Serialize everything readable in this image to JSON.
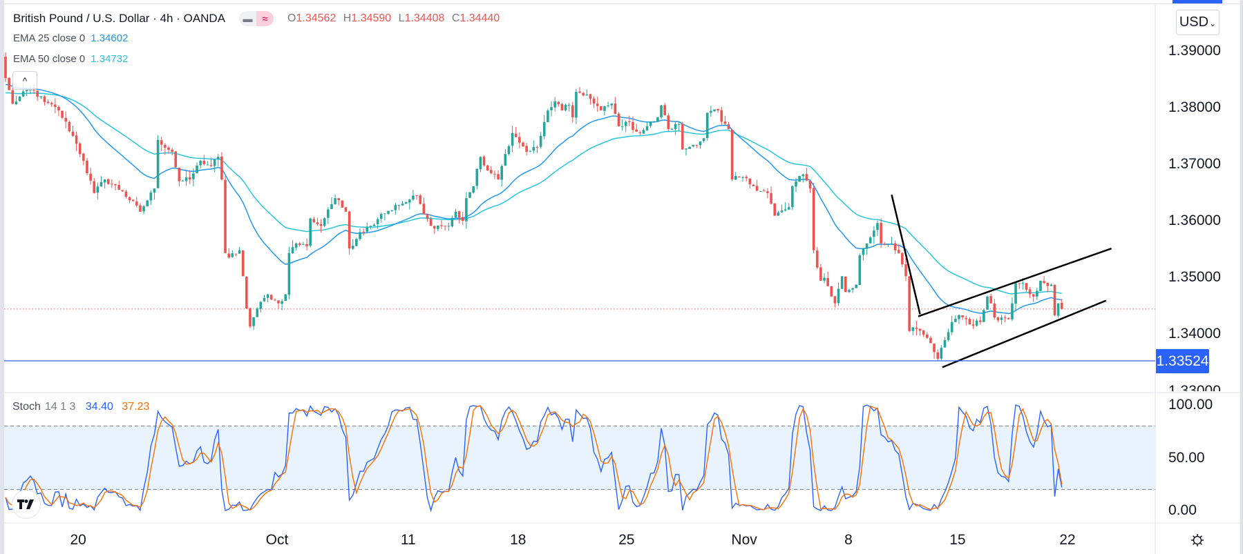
{
  "legend": {
    "title": "British Pound / U.S. Dollar · 4h · OANDA",
    "pill_left_icon": "minus-icon",
    "pill_right_icon": "approx-icon",
    "pill_right_glyph": "≈",
    "ohlc": {
      "o_key": "O",
      "o": "1.34562",
      "h_key": "H",
      "h": "1.34590",
      "l_key": "L",
      "l": "1.34408",
      "c_key": "C",
      "c": "1.34440"
    },
    "ema25": {
      "label": "EMA 25 close 0",
      "value": "1.34602"
    },
    "ema50": {
      "label": "EMA 50 close 0",
      "value": "1.34732"
    },
    "collapse_glyph": "^"
  },
  "currency_button": {
    "label": "USD",
    "chevron": "⌄"
  },
  "stoch_legend": {
    "name": "Stoch",
    "params": "14 1 3",
    "k": "34.40",
    "d": "37.23"
  },
  "colors": {
    "up": "#26a69a",
    "down": "#ef5350",
    "ema25": "#2196f3",
    "ema50": "#26c6da",
    "stoch_k": "#2962ff",
    "stoch_d": "#ff6d00",
    "hline": "#2962ff",
    "last_price": "#ef5350",
    "band": "#e8f3fd"
  },
  "chart_data": {
    "type": "candlestick",
    "title": "British Pound / U.S. Dollar · 4h · OANDA",
    "price_ticks": [
      {
        "label": "1.39000",
        "value": 1.39
      },
      {
        "label": "1.38000",
        "value": 1.38
      },
      {
        "label": "1.37000",
        "value": 1.37
      },
      {
        "label": "1.36000",
        "value": 1.36
      },
      {
        "label": "1.35000",
        "value": 1.35
      },
      {
        "label": "1.34000",
        "value": 1.34
      },
      {
        "label": "1.33000",
        "value": 1.33
      }
    ],
    "ylim": [
      1.3269,
      1.3954
    ],
    "bar_count": 299,
    "start_open": 1.389,
    "close_anchors": [
      [
        0,
        1.3852
      ],
      [
        2,
        1.3807
      ],
      [
        7,
        1.3835
      ],
      [
        11,
        1.381
      ],
      [
        15,
        1.3795
      ],
      [
        19,
        1.375
      ],
      [
        22,
        1.3706
      ],
      [
        25,
        1.3649
      ],
      [
        28,
        1.3673
      ],
      [
        33,
        1.3652
      ],
      [
        38,
        1.3616
      ],
      [
        42,
        1.3657
      ],
      [
        43,
        1.3743
      ],
      [
        47,
        1.3722
      ],
      [
        49,
        1.367
      ],
      [
        52,
        1.3673
      ],
      [
        55,
        1.3706
      ],
      [
        58,
        1.3697
      ],
      [
        60,
        1.3713
      ],
      [
        61,
        1.3673
      ],
      [
        62,
        1.3543
      ],
      [
        63,
        1.3535
      ],
      [
        66,
        1.3548
      ],
      [
        67,
        1.3502
      ],
      [
        68,
        1.3445
      ],
      [
        69,
        1.3413
      ],
      [
        71,
        1.3445
      ],
      [
        74,
        1.347
      ],
      [
        77,
        1.3454
      ],
      [
        79,
        1.347
      ],
      [
        80,
        1.3543
      ],
      [
        82,
        1.356
      ],
      [
        85,
        1.3555
      ],
      [
        86,
        1.3604
      ],
      [
        89,
        1.3591
      ],
      [
        91,
        1.362
      ],
      [
        93,
        1.364
      ],
      [
        96,
        1.3616
      ],
      [
        97,
        1.3551
      ],
      [
        100,
        1.358
      ],
      [
        103,
        1.3591
      ],
      [
        106,
        1.3612
      ],
      [
        111,
        1.3628
      ],
      [
        113,
        1.3633
      ],
      [
        116,
        1.3645
      ],
      [
        118,
        1.3612
      ],
      [
        120,
        1.3591
      ],
      [
        125,
        1.3591
      ],
      [
        127,
        1.3616
      ],
      [
        129,
        1.36
      ],
      [
        130,
        1.364
      ],
      [
        132,
        1.3661
      ],
      [
        134,
        1.3713
      ],
      [
        136,
        1.3689
      ],
      [
        139,
        1.3673
      ],
      [
        141,
        1.3718
      ],
      [
        143,
        1.3755
      ],
      [
        145,
        1.3738
      ],
      [
        147,
        1.3722
      ],
      [
        150,
        1.373
      ],
      [
        151,
        1.375
      ],
      [
        153,
        1.3795
      ],
      [
        155,
        1.3811
      ],
      [
        157,
        1.3795
      ],
      [
        159,
        1.3805
      ],
      [
        160,
        1.3783
      ],
      [
        161,
        1.3828
      ],
      [
        164,
        1.3823
      ],
      [
        166,
        1.3807
      ],
      [
        168,
        1.3795
      ],
      [
        171,
        1.3807
      ],
      [
        173,
        1.3767
      ],
      [
        175,
        1.3775
      ],
      [
        179,
        1.3755
      ],
      [
        181,
        1.3767
      ],
      [
        184,
        1.3783
      ],
      [
        185,
        1.3804
      ],
      [
        187,
        1.3762
      ],
      [
        190,
        1.3771
      ],
      [
        191,
        1.3726
      ],
      [
        194,
        1.3734
      ],
      [
        197,
        1.3746
      ],
      [
        198,
        1.3791
      ],
      [
        201,
        1.3795
      ],
      [
        202,
        1.3775
      ],
      [
        204,
        1.3762
      ],
      [
        205,
        1.3673
      ],
      [
        208,
        1.3677
      ],
      [
        211,
        1.3661
      ],
      [
        215,
        1.3649
      ],
      [
        217,
        1.3609
      ],
      [
        221,
        1.3624
      ],
      [
        222,
        1.3661
      ],
      [
        225,
        1.3682
      ],
      [
        227,
        1.3657
      ],
      [
        228,
        1.3548
      ],
      [
        230,
        1.3494
      ],
      [
        231,
        1.3499
      ],
      [
        234,
        1.3454
      ],
      [
        236,
        1.3502
      ],
      [
        237,
        1.3474
      ],
      [
        240,
        1.3487
      ],
      [
        241,
        1.3539
      ],
      [
        243,
        1.356
      ],
      [
        246,
        1.3596
      ],
      [
        247,
        1.356
      ],
      [
        250,
        1.356
      ],
      [
        252,
        1.3543
      ],
      [
        254,
        1.3502
      ],
      [
        255,
        1.3405
      ],
      [
        257,
        1.3409
      ],
      [
        260,
        1.3393
      ],
      [
        262,
        1.3368
      ],
      [
        263,
        1.3356
      ],
      [
        265,
        1.3389
      ],
      [
        267,
        1.3421
      ],
      [
        269,
        1.3433
      ],
      [
        271,
        1.3426
      ],
      [
        272,
        1.3417
      ],
      [
        275,
        1.3421
      ],
      [
        277,
        1.3466
      ],
      [
        278,
        1.3454
      ],
      [
        279,
        1.3429
      ],
      [
        281,
        1.3429
      ],
      [
        283,
        1.3426
      ],
      [
        284,
        1.3454
      ],
      [
        285,
        1.349
      ],
      [
        287,
        1.349
      ],
      [
        290,
        1.3466
      ],
      [
        292,
        1.3494
      ],
      [
        293,
        1.349
      ],
      [
        295,
        1.3487
      ],
      [
        296,
        1.3433
      ],
      [
        297,
        1.3454
      ],
      [
        298,
        1.3444
      ]
    ],
    "ema_seed": {
      "ema25": 1.384,
      "ema50": 1.3825
    },
    "indicators": [
      {
        "name": "EMA 25 close 0",
        "period": 25
      },
      {
        "name": "EMA 50 close 0",
        "period": 50
      }
    ],
    "horizontal_line": {
      "price": 1.33524,
      "label": "1.33524"
    },
    "last_price": 1.3444,
    "drawings": [
      {
        "name": "steep-trendline",
        "points": [
          [
            250,
            1.3646
          ],
          [
            258,
            1.3435
          ]
        ]
      },
      {
        "name": "channel-upper",
        "points": [
          [
            257.5,
            1.3431
          ],
          [
            312,
            1.3551
          ]
        ]
      },
      {
        "name": "channel-lower",
        "points": [
          [
            264.3,
            1.3341
          ],
          [
            310.5,
            1.3459
          ]
        ]
      }
    ],
    "time_labels": [
      {
        "label": "20",
        "bar": 20.5
      },
      {
        "label": "Oct",
        "bar": 76.6
      },
      {
        "label": "11",
        "bar": 113.6
      },
      {
        "label": "18",
        "bar": 144.6
      },
      {
        "label": "25",
        "bar": 175.2
      },
      {
        "label": "Nov",
        "bar": 208.4
      },
      {
        "label": "8",
        "bar": 237.8
      },
      {
        "label": "15",
        "bar": 268.6
      },
      {
        "label": "22",
        "bar": 299.6
      }
    ],
    "stoch": {
      "k_period": 14,
      "smooth": 1,
      "d_period": 3,
      "ticks": [
        {
          "label": "100.00",
          "value": 100
        },
        {
          "label": "50.00",
          "value": 50
        },
        {
          "label": "0.00",
          "value": 0
        }
      ],
      "upper_band": 80,
      "lower_band": 20,
      "ylim": [
        -12,
        112
      ]
    }
  }
}
